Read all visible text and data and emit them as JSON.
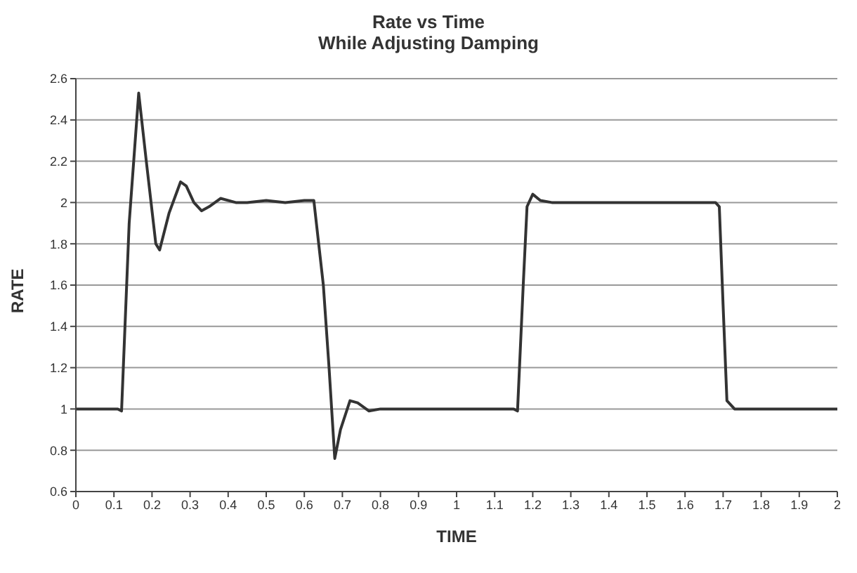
{
  "chart_data": {
    "type": "line",
    "title": "Rate vs Time",
    "subtitle": "While Adjusting Damping",
    "xlabel": "TIME",
    "ylabel": "RATE",
    "x": [
      0,
      0.11,
      0.12,
      0.14,
      0.165,
      0.185,
      0.21,
      0.22,
      0.245,
      0.275,
      0.29,
      0.31,
      0.33,
      0.35,
      0.38,
      0.42,
      0.45,
      0.5,
      0.55,
      0.6,
      0.625,
      0.65,
      0.665,
      0.68,
      0.695,
      0.72,
      0.74,
      0.77,
      0.8,
      1.15,
      1.16,
      1.175,
      1.185,
      1.2,
      1.22,
      1.25,
      1.68,
      1.69,
      1.7,
      1.71,
      1.73,
      2
    ],
    "series": [
      {
        "color": "#333333",
        "values": [
          1,
          1,
          0.99,
          1.9,
          2.53,
          2.2,
          1.8,
          1.77,
          1.95,
          2.1,
          2.08,
          2.0,
          1.96,
          1.98,
          2.02,
          2.0,
          2.0,
          2.01,
          2.0,
          2.01,
          2.01,
          1.6,
          1.2,
          0.76,
          0.9,
          1.04,
          1.03,
          0.99,
          1.0,
          1.0,
          0.99,
          1.6,
          1.98,
          2.04,
          2.01,
          2.0,
          2.0,
          1.98,
          1.5,
          1.04,
          1.0,
          1
        ]
      }
    ],
    "xlim": [
      0,
      2
    ],
    "xticks": [
      0,
      0.1,
      0.2,
      0.3,
      0.4,
      0.5,
      0.6,
      0.7,
      0.8,
      0.9,
      1,
      1.1,
      1.2,
      1.3,
      1.4,
      1.5,
      1.6,
      1.7,
      1.8,
      1.9,
      2
    ],
    "ylim": [
      0.6,
      2.6
    ],
    "yticks": [
      0.6,
      0.8,
      1,
      1.2,
      1.4,
      1.6,
      1.8,
      2,
      2.2,
      2.4,
      2.6
    ],
    "grid": "y",
    "legend": false,
    "marker": "none",
    "line_style": "solid"
  }
}
